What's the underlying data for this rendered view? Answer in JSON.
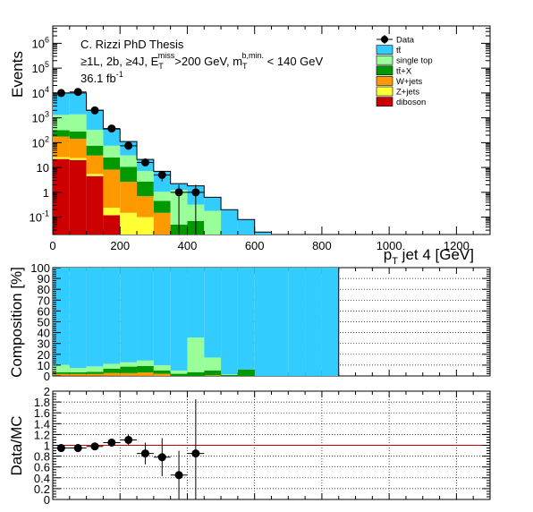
{
  "header": {
    "line1": "C. Rizzi PhD Thesis",
    "line2_prefix": "≥1L, 2b, ≥4J, E",
    "line2_sub1": "T",
    "line2_sup1": "miss",
    "line2_mid": ">200 GeV, m",
    "line2_sub2": "T",
    "line2_sup2": "b,min.",
    "line2_suffix": " < 140 GeV",
    "lumi": "36.1 fb",
    "lumi_sup": "-1"
  },
  "colors": {
    "ttbar": "#33ccff",
    "single_top": "#99ff99",
    "ttX": "#009900",
    "wjets": "#ff9900",
    "zjets": "#ffff33",
    "diboson": "#cc0000",
    "data": "#000000",
    "ratio_line": "#cc0000"
  },
  "chart_data": [
    {
      "name": "main",
      "type": "bar",
      "stacked": true,
      "log_y": true,
      "ylabel": "Events",
      "xlabel": "p",
      "xlabel_sub": "T",
      "xlabel_suffix": " jet 4 [GeV]",
      "xlim": [
        0,
        1300
      ],
      "ylim": [
        0.02,
        5000000
      ],
      "x_ticks": [
        0,
        200,
        400,
        600,
        800,
        1000,
        1200
      ],
      "y_ticks": [
        {
          "value": 0.1,
          "base": "10",
          "exp": "-1"
        },
        {
          "value": 1,
          "label": "1"
        },
        {
          "value": 10,
          "label": "10"
        },
        {
          "value": 100,
          "base": "10",
          "exp": "2"
        },
        {
          "value": 1000,
          "base": "10",
          "exp": "3"
        },
        {
          "value": 10000,
          "base": "10",
          "exp": "4"
        },
        {
          "value": 100000,
          "base": "10",
          "exp": "5"
        },
        {
          "value": 1000000,
          "base": "10",
          "exp": "6"
        }
      ],
      "bin_edges": [
        0,
        50,
        100,
        150,
        200,
        250,
        300,
        350,
        400,
        450,
        500,
        550,
        600,
        650
      ],
      "series": [
        {
          "key": "diboson",
          "name": "diboson",
          "values": [
            22,
            20,
            4.5,
            0.12,
            0,
            0,
            0,
            0,
            0,
            0,
            0,
            0,
            0
          ]
        },
        {
          "key": "zjets",
          "name": "Z+jets",
          "values": [
            4,
            4,
            1,
            0.12,
            0.15,
            0.1,
            0,
            0,
            0,
            0,
            0,
            0,
            0
          ]
        },
        {
          "key": "wjets",
          "name": "W+jets",
          "values": [
            150,
            120,
            25,
            8,
            2.5,
            0.6,
            0.15,
            0,
            0,
            0,
            0,
            0,
            0
          ]
        },
        {
          "key": "ttX",
          "name": "tt̄+X",
          "values": [
            140,
            140,
            45,
            17,
            8,
            2,
            0.3,
            0.05,
            0.07,
            0,
            0,
            0,
            0
          ]
        },
        {
          "key": "single_top",
          "name": "single top",
          "values": [
            1000,
            1100,
            250,
            50,
            20,
            4.5,
            0.6,
            1.2,
            0.25,
            0.18,
            0,
            0,
            0
          ]
        },
        {
          "key": "ttbar",
          "name": "tt̄",
          "values": [
            8700,
            8600,
            1700,
            280,
            80,
            14,
            6,
            1,
            1.5,
            0.45,
            0.2,
            0.08,
            0.025
          ]
        }
      ],
      "data": {
        "name": "Data",
        "points": [
          {
            "x": 25,
            "y": 10000
          },
          {
            "x": 75,
            "y": 11000
          },
          {
            "x": 125,
            "y": 2000
          },
          {
            "x": 175,
            "y": 370
          },
          {
            "x": 225,
            "y": 75
          },
          {
            "x": 275,
            "y": 16
          },
          {
            "x": 325,
            "y": 5
          },
          {
            "x": 375,
            "y": 1
          },
          {
            "x": 425,
            "y": 1
          }
        ]
      },
      "legend_position": "top-right"
    },
    {
      "name": "composition",
      "type": "bar",
      "stacked": true,
      "ylabel": "Composition [%]",
      "ylim": [
        0,
        100
      ],
      "y_ticks": [
        0,
        10,
        20,
        30,
        40,
        50,
        60,
        70,
        80,
        90,
        100
      ],
      "xlim": [
        0,
        1300
      ],
      "bin_edges": [
        0,
        50,
        100,
        150,
        200,
        250,
        300,
        350,
        400,
        450,
        500,
        550,
        600,
        650,
        700,
        750,
        800,
        850
      ],
      "series": [
        {
          "key": "diboson",
          "values": [
            0.2,
            0.2,
            0.2,
            0.1,
            0,
            0,
            0,
            0,
            0,
            0,
            0,
            0,
            0,
            0,
            0,
            0,
            0
          ]
        },
        {
          "key": "zjets",
          "values": [
            0.1,
            0.1,
            0.1,
            0.1,
            0.1,
            0.2,
            0,
            0,
            0,
            0,
            0,
            0,
            0,
            0,
            0,
            0,
            0
          ]
        },
        {
          "key": "wjets",
          "values": [
            1.5,
            1.5,
            1.5,
            2.5,
            2.5,
            3,
            2,
            0,
            0,
            0.5,
            0,
            0,
            0,
            0,
            0,
            0,
            0
          ]
        },
        {
          "key": "ttX",
          "values": [
            1.5,
            1.5,
            2,
            4,
            6,
            6,
            3,
            2,
            3.5,
            4.5,
            1,
            6,
            0,
            0,
            0,
            0,
            0
          ]
        },
        {
          "key": "single_top",
          "values": [
            7,
            4,
            5,
            4.5,
            4,
            5,
            5,
            3,
            32,
            12,
            0.5,
            0,
            0,
            0,
            0,
            0,
            0
          ]
        },
        {
          "key": "ttbar",
          "values": [
            89.7,
            92.7,
            91.2,
            88.8,
            87.4,
            85.8,
            90,
            95,
            64.5,
            83,
            98.5,
            94,
            100,
            100,
            100,
            100,
            100
          ]
        }
      ]
    },
    {
      "name": "ratio",
      "type": "scatter",
      "ylabel": "Data/MC",
      "ylim": [
        0,
        2
      ],
      "y_ticks": [
        0,
        0.2,
        0.4,
        0.6,
        0.8,
        1,
        1.2,
        1.4,
        1.6,
        1.8,
        2
      ],
      "xlim": [
        0,
        1300
      ],
      "reference_line": 1,
      "points": [
        {
          "x": 25,
          "y": 0.95,
          "err": 0.02
        },
        {
          "x": 75,
          "y": 0.95,
          "err": 0.02
        },
        {
          "x": 125,
          "y": 0.98,
          "err": 0.03
        },
        {
          "x": 175,
          "y": 1.05,
          "err": 0.05
        },
        {
          "x": 225,
          "y": 1.1,
          "err": 0.1
        },
        {
          "x": 275,
          "y": 0.85,
          "err": 0.2
        },
        {
          "x": 325,
          "y": 0.78,
          "err": 0.35
        },
        {
          "x": 375,
          "y": 0.45,
          "err": 0.45
        },
        {
          "x": 425,
          "y": 0.85,
          "err": 1.0
        }
      ]
    }
  ]
}
